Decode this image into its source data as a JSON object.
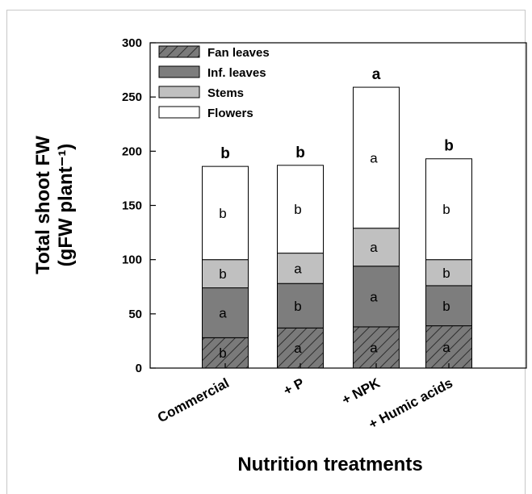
{
  "chart_data": {
    "type": "bar",
    "stacked": true,
    "categories": [
      "Commercial",
      "+ P",
      "+ NPK",
      "+ Humic acids"
    ],
    "series": [
      {
        "name": "Fan leaves",
        "color": "#7a7a7a",
        "pattern": "hatch",
        "values": [
          28,
          37,
          38,
          39
        ],
        "letters": [
          "b",
          "a",
          "a",
          "a"
        ]
      },
      {
        "name": "Inf. leaves",
        "color": "#7d7d7d",
        "values": [
          46,
          41,
          56,
          37
        ],
        "letters": [
          "a",
          "b",
          "a",
          "b"
        ]
      },
      {
        "name": "Stems",
        "color": "#c0c0c0",
        "values": [
          26,
          28,
          35,
          24
        ],
        "letters": [
          "b",
          "a",
          "a",
          "b"
        ]
      },
      {
        "name": "Flowers",
        "color": "#ffffff",
        "values": [
          86,
          81,
          130,
          93
        ],
        "letters": [
          "b",
          "b",
          "a",
          "b"
        ]
      }
    ],
    "totals_letters": [
      "b",
      "b",
      "a",
      "b"
    ],
    "ylim": [
      0,
      300
    ],
    "yticks": [
      "0",
      "50",
      "100",
      "150",
      "200",
      "250",
      "300"
    ],
    "ylabel_line1": "Total shoot FW",
    "ylabel_line2": "(gFW plant⁻¹)",
    "xlabel": "Nutrition treatments",
    "legend_position": "top-left"
  }
}
